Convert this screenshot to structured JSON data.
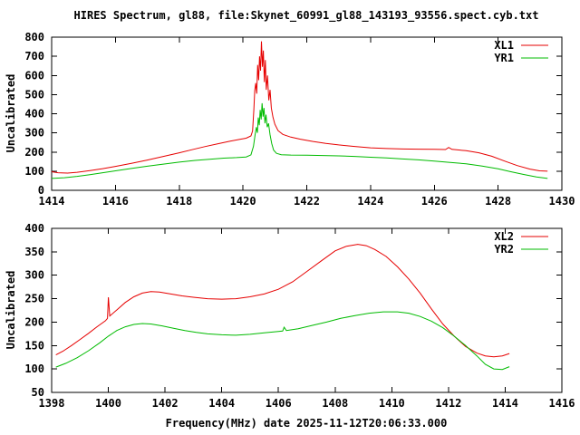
{
  "title": "HIRES Spectrum, gl88, file:Skynet_60991_gl88_143193_93556.spect.cyb.txt",
  "xlabel": "Frequency(MHz) date 2025-11-12T20:06:33.000",
  "colors": {
    "background": "#ffffff",
    "axis": "#000000",
    "text": "#000000",
    "series_red": "#e60000",
    "series_green": "#00bb00"
  },
  "chart_data": [
    {
      "type": "line",
      "title": "",
      "ylabel": "Uncalibrated",
      "xlim": [
        1414,
        1430
      ],
      "ylim": [
        0,
        800
      ],
      "xticks": [
        1414,
        1416,
        1418,
        1420,
        1422,
        1424,
        1426,
        1428,
        1430
      ],
      "yticks": [
        0,
        100,
        200,
        300,
        400,
        500,
        600,
        700,
        800
      ],
      "grid": false,
      "legend_position": "top-right",
      "series": [
        {
          "name": "XL1",
          "color": "#e60000",
          "points": [
            [
              1414.0,
              97
            ],
            [
              1414.2,
              92
            ],
            [
              1414.5,
              90
            ],
            [
              1414.8,
              94
            ],
            [
              1415.2,
              103
            ],
            [
              1415.6,
              113
            ],
            [
              1416.0,
              125
            ],
            [
              1416.5,
              141
            ],
            [
              1417.0,
              158
            ],
            [
              1417.5,
              177
            ],
            [
              1418.0,
              196
            ],
            [
              1418.4,
              212
            ],
            [
              1418.8,
              228
            ],
            [
              1419.2,
              243
            ],
            [
              1419.6,
              257
            ],
            [
              1419.9,
              266
            ],
            [
              1420.1,
              272
            ],
            [
              1420.25,
              284
            ],
            [
              1420.3,
              310
            ],
            [
              1420.34,
              420
            ],
            [
              1420.37,
              520
            ],
            [
              1420.4,
              560
            ],
            [
              1420.43,
              505
            ],
            [
              1420.46,
              655
            ],
            [
              1420.49,
              575
            ],
            [
              1420.52,
              700
            ],
            [
              1420.55,
              625
            ],
            [
              1420.58,
              778
            ],
            [
              1420.61,
              645
            ],
            [
              1420.64,
              730
            ],
            [
              1420.67,
              565
            ],
            [
              1420.7,
              680
            ],
            [
              1420.73,
              525
            ],
            [
              1420.77,
              600
            ],
            [
              1420.81,
              470
            ],
            [
              1420.85,
              525
            ],
            [
              1420.89,
              430
            ],
            [
              1420.94,
              382
            ],
            [
              1421.0,
              345
            ],
            [
              1421.1,
              312
            ],
            [
              1421.25,
              292
            ],
            [
              1421.5,
              278
            ],
            [
              1421.8,
              267
            ],
            [
              1422.2,
              255
            ],
            [
              1422.6,
              245
            ],
            [
              1423.0,
              237
            ],
            [
              1423.5,
              229
            ],
            [
              1424.0,
              222
            ],
            [
              1424.5,
              218
            ],
            [
              1425.0,
              216
            ],
            [
              1425.5,
              215
            ],
            [
              1426.0,
              214
            ],
            [
              1426.35,
              213
            ],
            [
              1426.45,
              224
            ],
            [
              1426.55,
              214
            ],
            [
              1427.0,
              207
            ],
            [
              1427.4,
              196
            ],
            [
              1427.8,
              178
            ],
            [
              1428.2,
              153
            ],
            [
              1428.6,
              129
            ],
            [
              1429.0,
              111
            ],
            [
              1429.3,
              102
            ],
            [
              1429.55,
              100
            ]
          ]
        },
        {
          "name": "YR1",
          "color": "#00bb00",
          "points": [
            [
              1414.0,
              62
            ],
            [
              1414.4,
              66
            ],
            [
              1414.8,
              73
            ],
            [
              1415.2,
              82
            ],
            [
              1415.6,
              92
            ],
            [
              1416.0,
              102
            ],
            [
              1416.5,
              114
            ],
            [
              1417.0,
              126
            ],
            [
              1417.5,
              137
            ],
            [
              1418.0,
              147
            ],
            [
              1418.5,
              156
            ],
            [
              1419.0,
              163
            ],
            [
              1419.4,
              168
            ],
            [
              1419.8,
              171
            ],
            [
              1420.1,
              174
            ],
            [
              1420.25,
              185
            ],
            [
              1420.33,
              230
            ],
            [
              1420.38,
              290
            ],
            [
              1420.42,
              330
            ],
            [
              1420.45,
              300
            ],
            [
              1420.48,
              380
            ],
            [
              1420.51,
              340
            ],
            [
              1420.54,
              420
            ],
            [
              1420.57,
              370
            ],
            [
              1420.6,
              455
            ],
            [
              1420.63,
              385
            ],
            [
              1420.66,
              430
            ],
            [
              1420.69,
              350
            ],
            [
              1420.72,
              395
            ],
            [
              1420.76,
              330
            ],
            [
              1420.8,
              350
            ],
            [
              1420.85,
              290
            ],
            [
              1420.9,
              245
            ],
            [
              1420.96,
              210
            ],
            [
              1421.05,
              193
            ],
            [
              1421.2,
              186
            ],
            [
              1421.5,
              184
            ],
            [
              1422.0,
              183
            ],
            [
              1422.5,
              182
            ],
            [
              1423.0,
              180
            ],
            [
              1423.5,
              177
            ],
            [
              1424.0,
              173
            ],
            [
              1424.5,
              169
            ],
            [
              1425.0,
              164
            ],
            [
              1425.5,
              159
            ],
            [
              1426.0,
              153
            ],
            [
              1426.5,
              146
            ],
            [
              1427.0,
              138
            ],
            [
              1427.5,
              127
            ],
            [
              1428.0,
              112
            ],
            [
              1428.4,
              97
            ],
            [
              1428.8,
              83
            ],
            [
              1429.2,
              70
            ],
            [
              1429.55,
              62
            ]
          ]
        }
      ]
    },
    {
      "type": "line",
      "title": "",
      "ylabel": "Uncalibrated",
      "xlim": [
        1398,
        1416
      ],
      "ylim": [
        50,
        400
      ],
      "xticks": [
        1398,
        1400,
        1402,
        1404,
        1406,
        1408,
        1410,
        1412,
        1414,
        1416
      ],
      "yticks": [
        50,
        100,
        150,
        200,
        250,
        300,
        350,
        400
      ],
      "grid": false,
      "legend_position": "top-right",
      "series": [
        {
          "name": "XL2",
          "color": "#e60000",
          "points": [
            [
              1398.15,
              130
            ],
            [
              1398.4,
              138
            ],
            [
              1398.7,
              150
            ],
            [
              1399.0,
              163
            ],
            [
              1399.3,
              176
            ],
            [
              1399.6,
              190
            ],
            [
              1399.9,
              203
            ],
            [
              1399.97,
              208
            ],
            [
              1400.0,
              253
            ],
            [
              1400.05,
              213
            ],
            [
              1400.3,
              226
            ],
            [
              1400.6,
              242
            ],
            [
              1400.9,
              254
            ],
            [
              1401.2,
              262
            ],
            [
              1401.5,
              265
            ],
            [
              1401.8,
              264
            ],
            [
              1402.2,
              260
            ],
            [
              1402.6,
              256
            ],
            [
              1403.0,
              253
            ],
            [
              1403.5,
              250
            ],
            [
              1404.0,
              249
            ],
            [
              1404.5,
              250
            ],
            [
              1405.0,
              254
            ],
            [
              1405.5,
              260
            ],
            [
              1406.0,
              270
            ],
            [
              1406.5,
              286
            ],
            [
              1407.0,
              308
            ],
            [
              1407.5,
              330
            ],
            [
              1408.0,
              352
            ],
            [
              1408.4,
              362
            ],
            [
              1408.8,
              366
            ],
            [
              1409.1,
              363
            ],
            [
              1409.4,
              355
            ],
            [
              1409.8,
              340
            ],
            [
              1410.2,
              318
            ],
            [
              1410.6,
              292
            ],
            [
              1411.0,
              262
            ],
            [
              1411.4,
              228
            ],
            [
              1411.8,
              196
            ],
            [
              1412.2,
              170
            ],
            [
              1412.6,
              148
            ],
            [
              1413.0,
              134
            ],
            [
              1413.3,
              128
            ],
            [
              1413.6,
              126
            ],
            [
              1413.9,
              128
            ],
            [
              1414.15,
              133
            ]
          ]
        },
        {
          "name": "YR2",
          "color": "#00bb00",
          "points": [
            [
              1398.15,
              104
            ],
            [
              1398.5,
              112
            ],
            [
              1398.9,
              124
            ],
            [
              1399.3,
              139
            ],
            [
              1399.7,
              156
            ],
            [
              1400.0,
              170
            ],
            [
              1400.3,
              182
            ],
            [
              1400.6,
              190
            ],
            [
              1400.9,
              195
            ],
            [
              1401.2,
              197
            ],
            [
              1401.5,
              196
            ],
            [
              1401.9,
              192
            ],
            [
              1402.3,
              187
            ],
            [
              1402.7,
              182
            ],
            [
              1403.1,
              178
            ],
            [
              1403.5,
              175
            ],
            [
              1404.0,
              173
            ],
            [
              1404.5,
              172
            ],
            [
              1405.0,
              174
            ],
            [
              1405.5,
              177
            ],
            [
              1406.0,
              180
            ],
            [
              1406.15,
              181
            ],
            [
              1406.2,
              189
            ],
            [
              1406.28,
              182
            ],
            [
              1406.7,
              186
            ],
            [
              1407.2,
              193
            ],
            [
              1407.7,
              200
            ],
            [
              1408.2,
              208
            ],
            [
              1408.7,
              214
            ],
            [
              1409.2,
              219
            ],
            [
              1409.7,
              222
            ],
            [
              1410.2,
              222
            ],
            [
              1410.6,
              219
            ],
            [
              1411.0,
              212
            ],
            [
              1411.4,
              202
            ],
            [
              1411.8,
              188
            ],
            [
              1412.2,
              170
            ],
            [
              1412.6,
              150
            ],
            [
              1413.0,
              128
            ],
            [
              1413.3,
              110
            ],
            [
              1413.6,
              100
            ],
            [
              1413.9,
              99
            ],
            [
              1414.15,
              105
            ]
          ]
        }
      ]
    }
  ]
}
